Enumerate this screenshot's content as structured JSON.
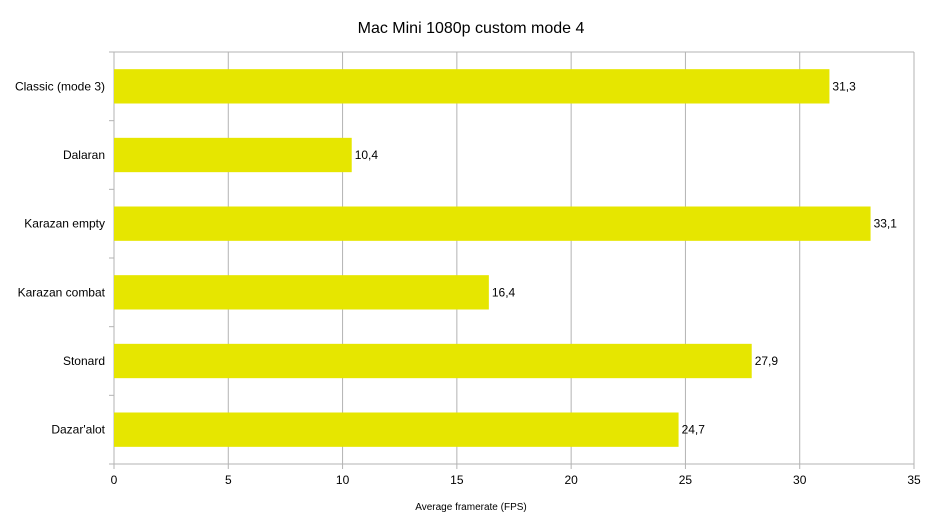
{
  "chart_data": {
    "type": "bar",
    "orientation": "horizontal",
    "title": "Mac Mini 1080p custom mode 4",
    "xlabel": "Average framerate (FPS)",
    "ylabel": "",
    "categories": [
      "Classic (mode 3)",
      "Dalaran",
      "Karazan empty",
      "Karazan combat",
      "Stonard",
      "Dazar'alot"
    ],
    "values": [
      31.3,
      10.4,
      33.1,
      16.4,
      27.9,
      24.7
    ],
    "value_labels": [
      "31,3",
      "10,4",
      "33,1",
      "16,4",
      "27,9",
      "24,7"
    ],
    "xlim": [
      0,
      35
    ],
    "xticks": [
      0,
      5,
      10,
      15,
      20,
      25,
      30,
      35
    ],
    "grid": true,
    "legend": "none",
    "bar_color": "#e6e600"
  }
}
